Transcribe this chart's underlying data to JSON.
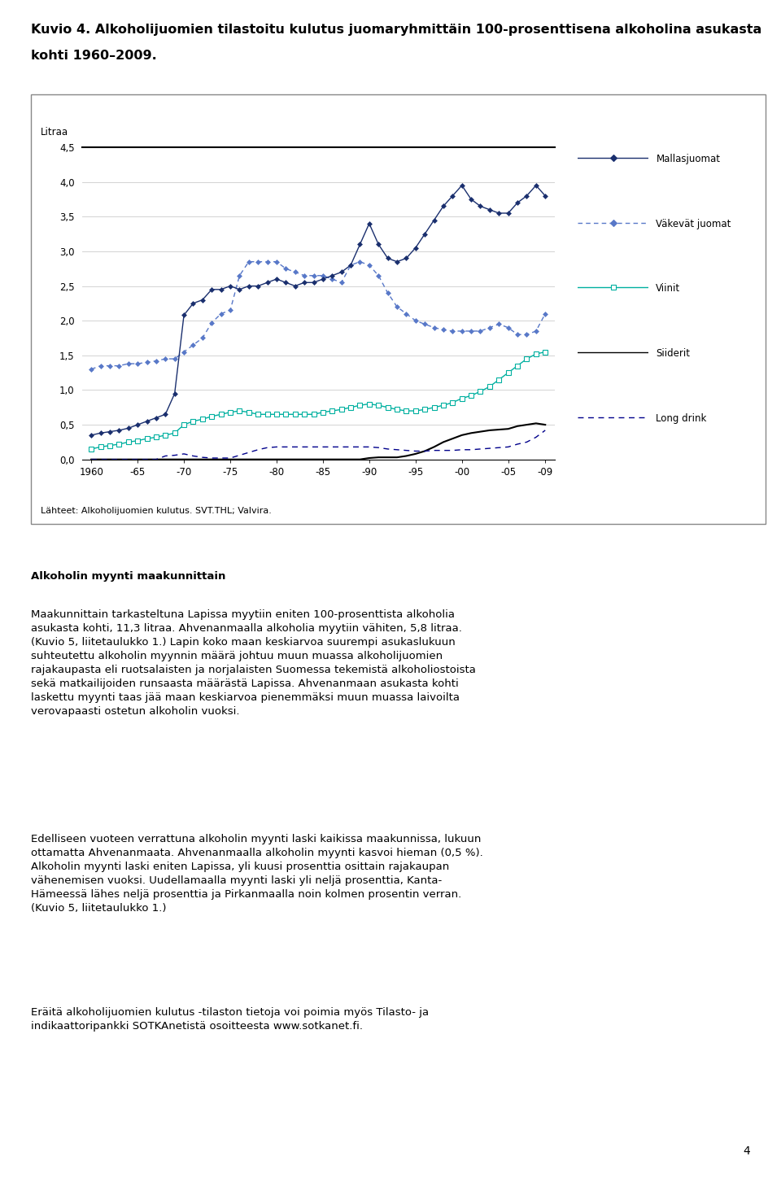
{
  "title_line1": "Kuvio 4. Alkoholijuomien tilastoitu kulutus juomaryhmittäin 100-prosenttisena alkoholina asukasta",
  "title_line2": "kohti 1960–2009.",
  "ylabel": "Litraa",
  "source_text": "Lähteet: Alkoholijuomien kulutus. SVT.THL; Valvira.",
  "years": [
    1960,
    1961,
    1962,
    1963,
    1964,
    1965,
    1966,
    1967,
    1968,
    1969,
    1970,
    1971,
    1972,
    1973,
    1974,
    1975,
    1976,
    1977,
    1978,
    1979,
    1980,
    1981,
    1982,
    1983,
    1984,
    1985,
    1986,
    1987,
    1988,
    1989,
    1990,
    1991,
    1992,
    1993,
    1994,
    1995,
    1996,
    1997,
    1998,
    1999,
    2000,
    2001,
    2002,
    2003,
    2004,
    2005,
    2006,
    2007,
    2008,
    2009
  ],
  "mallasjuomat": [
    0.35,
    0.38,
    0.4,
    0.42,
    0.45,
    0.5,
    0.55,
    0.6,
    0.65,
    0.95,
    2.08,
    2.25,
    2.3,
    2.45,
    2.45,
    2.5,
    2.45,
    2.5,
    2.5,
    2.55,
    2.6,
    2.55,
    2.5,
    2.55,
    2.55,
    2.6,
    2.65,
    2.7,
    2.8,
    3.1,
    3.4,
    3.1,
    2.9,
    2.85,
    2.9,
    3.05,
    3.25,
    3.45,
    3.65,
    3.8,
    3.95,
    3.75,
    3.65,
    3.6,
    3.55,
    3.55,
    3.7,
    3.8,
    3.95,
    3.8
  ],
  "vakevat_juomat": [
    1.3,
    1.35,
    1.35,
    1.35,
    1.38,
    1.38,
    1.4,
    1.42,
    1.45,
    1.45,
    1.55,
    1.65,
    1.75,
    1.97,
    2.1,
    2.15,
    2.65,
    2.85,
    2.85,
    2.85,
    2.85,
    2.75,
    2.7,
    2.65,
    2.65,
    2.65,
    2.6,
    2.55,
    2.8,
    2.85,
    2.8,
    2.65,
    2.4,
    2.2,
    2.1,
    2.0,
    1.95,
    1.9,
    1.87,
    1.85,
    1.85,
    1.85,
    1.85,
    1.9,
    1.95,
    1.9,
    1.8,
    1.8,
    1.85,
    2.1
  ],
  "viinit": [
    0.15,
    0.18,
    0.2,
    0.22,
    0.25,
    0.27,
    0.3,
    0.32,
    0.35,
    0.38,
    0.5,
    0.55,
    0.58,
    0.62,
    0.65,
    0.68,
    0.7,
    0.68,
    0.65,
    0.65,
    0.65,
    0.65,
    0.65,
    0.65,
    0.65,
    0.68,
    0.7,
    0.72,
    0.75,
    0.78,
    0.8,
    0.78,
    0.75,
    0.72,
    0.7,
    0.7,
    0.72,
    0.75,
    0.78,
    0.82,
    0.88,
    0.92,
    0.98,
    1.05,
    1.15,
    1.25,
    1.35,
    1.45,
    1.52,
    1.55
  ],
  "siiderit": [
    0.0,
    0.0,
    0.0,
    0.0,
    0.0,
    0.0,
    0.0,
    0.0,
    0.0,
    0.0,
    0.0,
    0.0,
    0.0,
    0.0,
    0.0,
    0.0,
    0.0,
    0.0,
    0.0,
    0.0,
    0.0,
    0.0,
    0.0,
    0.0,
    0.0,
    0.0,
    0.0,
    0.0,
    0.0,
    0.0,
    0.02,
    0.03,
    0.03,
    0.03,
    0.05,
    0.08,
    0.12,
    0.18,
    0.25,
    0.3,
    0.35,
    0.38,
    0.4,
    0.42,
    0.43,
    0.44,
    0.48,
    0.5,
    0.52,
    0.5
  ],
  "long_drink": [
    0.0,
    0.0,
    0.0,
    0.0,
    0.0,
    0.0,
    0.0,
    0.0,
    0.05,
    0.06,
    0.08,
    0.05,
    0.03,
    0.02,
    0.02,
    0.02,
    0.06,
    0.1,
    0.14,
    0.17,
    0.18,
    0.18,
    0.18,
    0.18,
    0.18,
    0.18,
    0.18,
    0.18,
    0.18,
    0.18,
    0.18,
    0.17,
    0.15,
    0.14,
    0.13,
    0.12,
    0.12,
    0.13,
    0.13,
    0.13,
    0.14,
    0.14,
    0.15,
    0.16,
    0.17,
    0.18,
    0.22,
    0.25,
    0.32,
    0.42
  ],
  "xlim": [
    1959,
    2010
  ],
  "ylim": [
    0.0,
    4.5
  ],
  "xticks": [
    1960,
    1965,
    1970,
    1975,
    1980,
    1985,
    1990,
    1995,
    2000,
    2005,
    2009
  ],
  "xticklabels": [
    "1960",
    "-65",
    "-70",
    "-75",
    "-80",
    "-85",
    "-90",
    "-95",
    "-00",
    "-05",
    "-09"
  ],
  "yticks": [
    0.0,
    0.5,
    1.0,
    1.5,
    2.0,
    2.5,
    3.0,
    3.5,
    4.0,
    4.5
  ],
  "mallasjuomat_color": "#1a2f6e",
  "vakevat_color": "#5878c8",
  "viinit_color": "#00b0a0",
  "siiderit_color": "#000000",
  "long_drink_color": "#00008b",
  "body_heading": "Alkoholin myynti maakunnittain",
  "body_para1": "Maakunnittain tarkasteltuna Lapissa myytiin eniten 100-prosenttista alkoholia asukasta kohti, 11,3 litraa. Ahvenanmaalla alkoholia myytiin vähiten, 5,8 litraa. (Kuvio 5, liitetaulukko 1.) Lapin koko maan keskiarvoa suurempi asukaslukuun suhteutettu alkoholin myynnin määrä johtuu muun muassa alkoholijuomien rajakaupasta eli ruotsalaisten ja norjalaisten Suomessa tekemistä alkoholiostoista sekä matkailijoiden runsaasta määrästä Lapissa. Ahvenanmaan asukasta kohti laskettu myynti taas jää maan keskiarvoa pienemmäksi muun muassa laivoilta verovapaasti ostetun alkoholin vuoksi.",
  "body_para2": "Edelliseen vuoteen verrattuna alkoholin myynti laski kaikissa maakunnissa, lukuun ottamatta Ahvenanmaata. Ahvenanmaalla alkoholin myynti kasvoi hieman (0,5 %). Alkoholin myynti laski eniten Lapissa, yli kuusi prosenttia osittain rajakaupan vähenemisen vuoksi. Uudellamaalla myynti laski yli neljä prosenttia, Kanta-Hämeessä lähes neljä prosenttia ja Pirkanmaalla noin kolmen prosentin verran.  (Kuvio 5, liitetaulukko 1.)",
  "body_para3": "Eräitä alkoholijuomien kulutus -tilaston tietoja voi poimia myös Tilasto- ja indikaattoripankki SOTKAnetistä osoitteesta www.sotkanet.fi.",
  "page_number": "4",
  "bg_color": "#ffffff",
  "chart_border_color": "#888888"
}
